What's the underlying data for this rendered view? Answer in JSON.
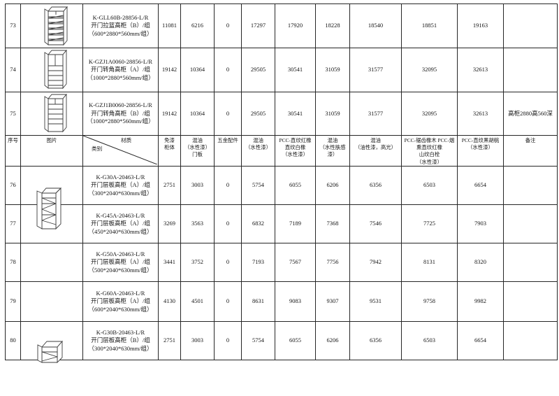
{
  "doc": {
    "columns": [
      {
        "id": "no",
        "label": "序号"
      },
      {
        "id": "image",
        "label": "图片"
      },
      {
        "id": "material",
        "label_top": "材质",
        "label_bottom": "类别"
      },
      {
        "id": "paint_free_cabinet",
        "label": "免漆\n柜体"
      },
      {
        "id": "mixed_paint_waterborne_door",
        "label": "混油\n（水性漆）\n门板"
      },
      {
        "id": "hardware",
        "label": "五金配件"
      },
      {
        "id": "mixed_paint_waterborne",
        "label": "混油\n（水性漆）"
      },
      {
        "id": "pcc_straight_red_white_oak",
        "label": "PCC-直纹红橡\n直纹白橡\n（水性漆）"
      },
      {
        "id": "mixed_paint_skin_feel",
        "label": "混油\n（水性肤感\n漆）"
      },
      {
        "id": "mixed_paint_oil_gloss",
        "label": "混油\n（油性漆，高光）"
      },
      {
        "id": "pcc_sawtooth_oak_smoked",
        "label": "PCC-锯齿橡木 PCC-烟\n熏直纹红橡\n山纹白栓\n（水性漆）"
      },
      {
        "id": "pcc_black_walnut",
        "label": "PCC-直纹黑胡桃\n（水性漆）"
      },
      {
        "id": "remark",
        "label": "备注"
      }
    ],
    "rows_above": [
      {
        "no": "73",
        "desc": "K-GLL60B-28856-L/R\n开门拉篮高柜（B）/组\n（600*2880*560mm/组）",
        "values": [
          "11081",
          "6216",
          "0",
          "17297",
          "17920",
          "18228",
          "18540",
          "18851",
          "19163"
        ],
        "note": ""
      },
      {
        "no": "74",
        "desc": "K-GZJ1A0060-28856-L/R\n开门转角高柜（A）/组\n（1000*2880*560mm/组）",
        "values": [
          "19142",
          "10364",
          "0",
          "29505",
          "30541",
          "31059",
          "31577",
          "32095",
          "32613"
        ],
        "note": ""
      },
      {
        "no": "75",
        "desc": "K-GZJ1B0060-28856-L/R\n开门转角高柜（B）/组\n（1000*2880*560mm/组）",
        "values": [
          "19142",
          "10364",
          "0",
          "29505",
          "30541",
          "31059",
          "31577",
          "32095",
          "32613"
        ],
        "note": "高柜2880高560深"
      }
    ],
    "rows_below": [
      {
        "no": "76",
        "desc": "K-G30A-20463-L/R\n开门层板高柜（A）/组\n（300*2040*630mm/组）",
        "values": [
          "2751",
          "3003",
          "0",
          "5754",
          "6055",
          "6206",
          "6356",
          "6503",
          "6654"
        ],
        "note": ""
      },
      {
        "no": "77",
        "desc": "K-G45A-20463-L/R\n开门层板高柜（A）/组\n（450*2040*630mm/组）",
        "values": [
          "3269",
          "3563",
          "0",
          "6832",
          "7189",
          "7368",
          "7546",
          "7725",
          "7903"
        ],
        "note": ""
      },
      {
        "no": "78",
        "desc": "K-G50A-20463-L/R\n开门层板高柜（A）/组\n（500*2040*630mm/组）",
        "values": [
          "3441",
          "3752",
          "0",
          "7193",
          "7567",
          "7756",
          "7942",
          "8131",
          "8320"
        ],
        "note": ""
      },
      {
        "no": "79",
        "desc": "K-G60A-20463-L/R\n开门层板高柜（A）/组\n（600*2040*630mm/组）",
        "values": [
          "4130",
          "4501",
          "0",
          "8631",
          "9083",
          "9307",
          "9531",
          "9758",
          "9982"
        ],
        "note": ""
      },
      {
        "no": "80",
        "desc": "K-G30B-20463-L/R\n开门层板高柜（B）/组\n（300*2040*630mm/组）",
        "values": [
          "2751",
          "3003",
          "0",
          "5754",
          "6055",
          "6206",
          "6356",
          "6503",
          "6654"
        ],
        "note": ""
      }
    ],
    "images": [
      {
        "name": "pull-basket-tall-cabinet-drawing",
        "row": "73"
      },
      {
        "name": "corner-tall-cabinet-a-drawing",
        "row": "74"
      },
      {
        "name": "corner-tall-cabinet-b-drawing",
        "row": "75"
      },
      {
        "name": "shelf-tall-cabinet-a-drawing",
        "row": "76-77"
      },
      {
        "name": "shelf-tall-cabinet-b-drawing",
        "row": "80"
      }
    ],
    "colors": {
      "border": "#262626",
      "text": "#141414",
      "background": "#ffffff",
      "line_art": "#3c3c3c"
    }
  }
}
